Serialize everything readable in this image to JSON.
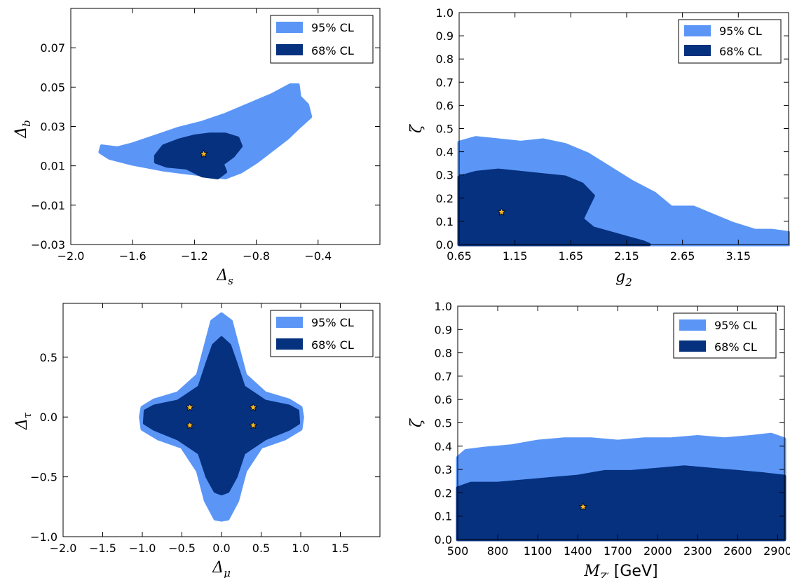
{
  "colors": {
    "cl95": "#5b96f7",
    "cl68": "#06317f",
    "star": "#f7b92b"
  },
  "chart_data": [
    {
      "id": "p1",
      "type": "contour",
      "xlabel": "Δs",
      "ylabel": "Δb",
      "xlim": [
        -2.0,
        0.0
      ],
      "ylim": [
        -0.03,
        0.09
      ],
      "xticks": [
        -2.0,
        -1.6,
        -1.2,
        -0.8,
        -0.4
      ],
      "xticklabels": [
        "−2.0",
        "−1.6",
        "−1.2",
        "−0.8",
        "−0.4"
      ],
      "yticks": [
        -0.03,
        -0.01,
        0.01,
        0.03,
        0.05,
        0.07
      ],
      "yticklabels": [
        "−0.03",
        "−0.01",
        "0.01",
        "0.03",
        "0.05",
        "0.07"
      ],
      "legend": {
        "position": "top-right",
        "entries": [
          "95% CL",
          "68% CL"
        ]
      },
      "regions": {
        "cl95": [
          [
            -1.8,
            0.02
          ],
          [
            -1.7,
            0.019
          ],
          [
            -1.6,
            0.021
          ],
          [
            -1.45,
            0.025
          ],
          [
            -1.3,
            0.029
          ],
          [
            -1.15,
            0.032
          ],
          [
            -1.0,
            0.036
          ],
          [
            -0.85,
            0.041
          ],
          [
            -0.7,
            0.046
          ],
          [
            -0.58,
            0.051
          ],
          [
            -0.53,
            0.051
          ],
          [
            -0.52,
            0.045
          ],
          [
            -0.47,
            0.041
          ],
          [
            -0.45,
            0.035
          ],
          [
            -0.52,
            0.03
          ],
          [
            -0.6,
            0.024
          ],
          [
            -0.7,
            0.018
          ],
          [
            -0.8,
            0.012
          ],
          [
            -0.9,
            0.007
          ],
          [
            -1.0,
            0.004
          ],
          [
            -1.2,
            0.006
          ],
          [
            -1.4,
            0.008
          ],
          [
            -1.6,
            0.011
          ],
          [
            -1.75,
            0.014
          ],
          [
            -1.81,
            0.017
          ]
        ],
        "cl68": [
          [
            -1.45,
            0.015
          ],
          [
            -1.4,
            0.02
          ],
          [
            -1.3,
            0.023
          ],
          [
            -1.2,
            0.025
          ],
          [
            -1.1,
            0.026
          ],
          [
            -1.0,
            0.026
          ],
          [
            -0.92,
            0.024
          ],
          [
            -0.9,
            0.02
          ],
          [
            -0.95,
            0.015
          ],
          [
            -1.02,
            0.011
          ],
          [
            -1.0,
            0.007
          ],
          [
            -1.05,
            0.004
          ],
          [
            -1.15,
            0.005
          ],
          [
            -1.25,
            0.009
          ],
          [
            -1.38,
            0.01
          ],
          [
            -1.45,
            0.012
          ]
        ]
      },
      "best_fit": [
        [
          -1.14,
          0.016
        ]
      ]
    },
    {
      "id": "p2",
      "type": "contour",
      "xlabel": "g2",
      "ylabel": "ζ",
      "xlim": [
        0.65,
        3.6
      ],
      "ylim": [
        0.0,
        1.0
      ],
      "xticks": [
        0.65,
        1.15,
        1.65,
        2.15,
        2.65,
        3.15
      ],
      "xticklabels": [
        "0.65",
        "1.15",
        "1.65",
        "2.15",
        "2.65",
        "3.15"
      ],
      "yticks": [
        0.0,
        0.1,
        0.2,
        0.3,
        0.4,
        0.5,
        0.6,
        0.7,
        0.8,
        0.9,
        1.0
      ],
      "yticklabels": [
        "0.0",
        "0.1",
        "0.2",
        "0.3",
        "0.4",
        "0.5",
        "0.6",
        "0.7",
        "0.8",
        "0.9",
        "1.0"
      ],
      "legend": {
        "position": "top-right",
        "entries": [
          "95% CL",
          "68% CL"
        ]
      },
      "regions": {
        "cl95": [
          [
            0.65,
            0.0
          ],
          [
            0.65,
            0.44
          ],
          [
            0.8,
            0.46
          ],
          [
            1.0,
            0.45
          ],
          [
            1.2,
            0.44
          ],
          [
            1.4,
            0.45
          ],
          [
            1.6,
            0.43
          ],
          [
            1.8,
            0.39
          ],
          [
            2.0,
            0.33
          ],
          [
            2.2,
            0.27
          ],
          [
            2.4,
            0.22
          ],
          [
            2.55,
            0.16
          ],
          [
            2.75,
            0.16
          ],
          [
            2.9,
            0.13
          ],
          [
            3.1,
            0.09
          ],
          [
            3.3,
            0.06
          ],
          [
            3.45,
            0.06
          ],
          [
            3.6,
            0.05
          ],
          [
            3.6,
            0.0
          ]
        ],
        "cl68": [
          [
            0.65,
            0.0
          ],
          [
            0.65,
            0.29
          ],
          [
            0.8,
            0.31
          ],
          [
            1.0,
            0.32
          ],
          [
            1.2,
            0.31
          ],
          [
            1.4,
            0.3
          ],
          [
            1.6,
            0.29
          ],
          [
            1.75,
            0.26
          ],
          [
            1.85,
            0.21
          ],
          [
            1.8,
            0.16
          ],
          [
            1.75,
            0.11
          ],
          [
            1.85,
            0.07
          ],
          [
            2.0,
            0.05
          ],
          [
            2.15,
            0.03
          ],
          [
            2.3,
            0.01
          ],
          [
            2.35,
            0.0
          ]
        ]
      },
      "best_fit": [
        [
          1.03,
          0.14
        ]
      ]
    },
    {
      "id": "p3",
      "type": "contour",
      "xlabel": "Δμ",
      "ylabel": "Δτ",
      "xlim": [
        -2.0,
        2.0
      ],
      "ylim": [
        -1.0,
        0.95
      ],
      "xticks": [
        -2.0,
        -1.5,
        -1.0,
        -0.5,
        0.0,
        0.5,
        1.0,
        1.5
      ],
      "xticklabels": [
        "−2.0",
        "−1.5",
        "−1.0",
        "−0.5",
        "0.0",
        "0.5",
        "1.0",
        "1.5"
      ],
      "yticks": [
        -1.0,
        -0.5,
        0.0,
        0.5
      ],
      "yticklabels": [
        "−1.0",
        "−0.5",
        "0.0",
        "0.5"
      ],
      "legend": {
        "position": "top-right",
        "entries": [
          "95% CL",
          "68% CL"
        ]
      },
      "regions": {
        "cl95": [
          [
            0.0,
            0.86
          ],
          [
            0.12,
            0.8
          ],
          [
            0.2,
            0.6
          ],
          [
            0.3,
            0.35
          ],
          [
            0.55,
            0.2
          ],
          [
            0.85,
            0.14
          ],
          [
            1.0,
            0.08
          ],
          [
            1.02,
            0.0
          ],
          [
            1.0,
            -0.1
          ],
          [
            0.8,
            -0.18
          ],
          [
            0.5,
            -0.25
          ],
          [
            0.3,
            -0.45
          ],
          [
            0.2,
            -0.7
          ],
          [
            0.08,
            -0.85
          ],
          [
            0.0,
            -0.86
          ],
          [
            -0.08,
            -0.85
          ],
          [
            -0.2,
            -0.7
          ],
          [
            -0.3,
            -0.45
          ],
          [
            -0.5,
            -0.25
          ],
          [
            -0.8,
            -0.18
          ],
          [
            -1.0,
            -0.1
          ],
          [
            -1.02,
            0.0
          ],
          [
            -1.0,
            0.08
          ],
          [
            -0.85,
            0.14
          ],
          [
            -0.55,
            0.2
          ],
          [
            -0.3,
            0.35
          ],
          [
            -0.2,
            0.6
          ],
          [
            -0.12,
            0.8
          ]
        ],
        "cl68": [
          [
            0.0,
            0.66
          ],
          [
            0.1,
            0.6
          ],
          [
            0.18,
            0.45
          ],
          [
            0.28,
            0.25
          ],
          [
            0.55,
            0.13
          ],
          [
            0.85,
            0.09
          ],
          [
            0.96,
            0.05
          ],
          [
            0.97,
            -0.05
          ],
          [
            0.85,
            -0.1
          ],
          [
            0.55,
            -0.18
          ],
          [
            0.28,
            -0.3
          ],
          [
            0.18,
            -0.5
          ],
          [
            0.08,
            -0.62
          ],
          [
            0.0,
            -0.64
          ],
          [
            -0.08,
            -0.62
          ],
          [
            -0.18,
            -0.5
          ],
          [
            -0.28,
            -0.3
          ],
          [
            -0.55,
            -0.18
          ],
          [
            -0.85,
            -0.1
          ],
          [
            -0.97,
            -0.05
          ],
          [
            -0.96,
            0.05
          ],
          [
            -0.85,
            0.09
          ],
          [
            -0.55,
            0.13
          ],
          [
            -0.28,
            0.25
          ],
          [
            -0.18,
            0.45
          ],
          [
            -0.1,
            0.6
          ]
        ]
      },
      "best_fit": [
        [
          -0.4,
          0.08
        ],
        [
          0.4,
          0.08
        ],
        [
          -0.4,
          -0.07
        ],
        [
          0.4,
          -0.07
        ]
      ]
    },
    {
      "id": "p4",
      "type": "contour",
      "xlabel": "MZ' [GeV]",
      "ylabel": "ζ",
      "xlim": [
        500,
        2950
      ],
      "ylim": [
        0.0,
        1.0
      ],
      "xticks": [
        500,
        800,
        1100,
        1400,
        1700,
        2000,
        2300,
        2600,
        2900
      ],
      "xticklabels": [
        "500",
        "800",
        "1100",
        "1400",
        "1700",
        "2000",
        "2300",
        "2600",
        "2900"
      ],
      "yticks": [
        0.0,
        0.1,
        0.2,
        0.3,
        0.4,
        0.5,
        0.6,
        0.7,
        0.8,
        0.9,
        1.0
      ],
      "yticklabels": [
        "0.0",
        "0.1",
        "0.2",
        "0.3",
        "0.4",
        "0.5",
        "0.6",
        "0.7",
        "0.8",
        "0.9",
        "1.0"
      ],
      "legend": {
        "position": "top-right",
        "entries": [
          "95% CL",
          "68% CL"
        ]
      },
      "regions": {
        "cl95": [
          [
            500,
            0.0
          ],
          [
            500,
            0.35
          ],
          [
            560,
            0.38
          ],
          [
            700,
            0.39
          ],
          [
            900,
            0.4
          ],
          [
            1100,
            0.42
          ],
          [
            1300,
            0.43
          ],
          [
            1500,
            0.43
          ],
          [
            1700,
            0.42
          ],
          [
            1900,
            0.43
          ],
          [
            2100,
            0.43
          ],
          [
            2300,
            0.44
          ],
          [
            2500,
            0.43
          ],
          [
            2700,
            0.44
          ],
          [
            2850,
            0.45
          ],
          [
            2950,
            0.43
          ],
          [
            2950,
            0.0
          ]
        ],
        "cl68": [
          [
            500,
            0.0
          ],
          [
            500,
            0.22
          ],
          [
            600,
            0.24
          ],
          [
            800,
            0.24
          ],
          [
            1000,
            0.25
          ],
          [
            1200,
            0.26
          ],
          [
            1400,
            0.27
          ],
          [
            1600,
            0.29
          ],
          [
            1800,
            0.29
          ],
          [
            2000,
            0.3
          ],
          [
            2200,
            0.31
          ],
          [
            2400,
            0.3
          ],
          [
            2600,
            0.29
          ],
          [
            2800,
            0.28
          ],
          [
            2950,
            0.27
          ],
          [
            2950,
            0.0
          ]
        ]
      },
      "best_fit": [
        [
          1440,
          0.14
        ]
      ]
    }
  ]
}
